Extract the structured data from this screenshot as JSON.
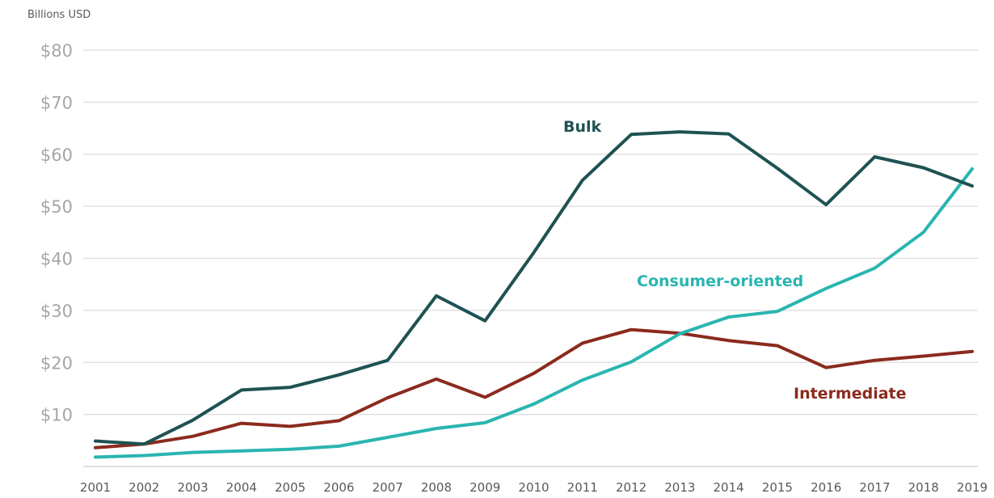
{
  "chart_data": {
    "type": "line",
    "title": "",
    "unit_label": "Billions USD",
    "xlabel": "",
    "ylabel": "",
    "ylim": [
      0,
      80
    ],
    "ytick_values": [
      10,
      20,
      30,
      40,
      50,
      60,
      70,
      80
    ],
    "ytick_labels": [
      "$10",
      "$20",
      "$30",
      "$40",
      "$50",
      "$60",
      "$70",
      "$80"
    ],
    "x": [
      "2001",
      "2002",
      "2003",
      "2004",
      "2005",
      "2006",
      "2007",
      "2008",
      "2009",
      "2010",
      "2011",
      "2012",
      "2013",
      "2014",
      "2015",
      "2016",
      "2017",
      "2018",
      "2019"
    ],
    "grid": true,
    "legend": "none",
    "series": [
      {
        "name": "Bulk",
        "color": "#1f5252",
        "values": [
          4.9,
          4.3,
          8.9,
          14.7,
          15.2,
          17.6,
          20.4,
          32.8,
          28.0,
          41.1,
          55.0,
          63.8,
          64.3,
          63.9,
          57.3,
          50.3,
          59.5,
          57.4,
          53.9
        ]
      },
      {
        "name": "Consumer-oriented",
        "color": "#2ab5b0",
        "values": [
          1.8,
          2.1,
          2.7,
          3.0,
          3.3,
          3.9,
          5.6,
          7.3,
          8.4,
          12.0,
          16.6,
          20.1,
          25.5,
          28.7,
          29.8,
          34.2,
          38.1,
          45.0,
          57.2
        ]
      },
      {
        "name": "Intermediate",
        "color": "#8b2a1e",
        "values": [
          3.6,
          4.3,
          5.8,
          8.3,
          7.7,
          8.8,
          13.2,
          16.8,
          13.3,
          17.9,
          23.7,
          26.3,
          25.6,
          24.2,
          23.2,
          19.0,
          20.4,
          21.2,
          22.1
        ]
      }
    ]
  }
}
